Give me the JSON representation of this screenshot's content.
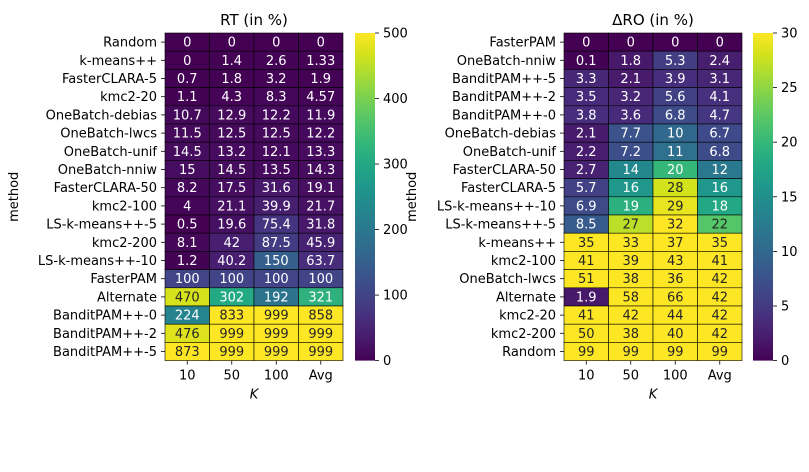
{
  "chart_data": [
    {
      "type": "heatmap",
      "title": "RT (in %)",
      "xlabel": "K",
      "ylabel": "method",
      "columns": [
        "10",
        "50",
        "100",
        "Avg"
      ],
      "rows": [
        "Random",
        "k-means++",
        "FasterCLARA-5",
        "kmc2-20",
        "OneBatch-debias",
        "OneBatch-lwcs",
        "OneBatch-unif",
        "OneBatch-nniw",
        "FasterCLARA-50",
        "kmc2-100",
        "LS-k-means++-5",
        "kmc2-200",
        "LS-k-means++-10",
        "FasterPAM",
        "Alternate",
        "BanditPAM++-0",
        "BanditPAM++-2",
        "BanditPAM++-5"
      ],
      "values": [
        [
          "0",
          "0",
          "0",
          "0"
        ],
        [
          "0",
          "1.4",
          "2.6",
          "1.33"
        ],
        [
          "0.7",
          "1.8",
          "3.2",
          "1.9"
        ],
        [
          "1.1",
          "4.3",
          "8.3",
          "4.57"
        ],
        [
          "10.7",
          "12.9",
          "12.2",
          "11.9"
        ],
        [
          "11.5",
          "12.5",
          "12.5",
          "12.2"
        ],
        [
          "14.5",
          "13.2",
          "12.1",
          "13.3"
        ],
        [
          "15",
          "14.5",
          "13.5",
          "14.3"
        ],
        [
          "8.2",
          "17.5",
          "31.6",
          "19.1"
        ],
        [
          "4",
          "21.1",
          "39.9",
          "21.7"
        ],
        [
          "0.5",
          "19.6",
          "75.4",
          "31.8"
        ],
        [
          "8.1",
          "42",
          "87.5",
          "45.9"
        ],
        [
          "1.2",
          "40.2",
          "150",
          "63.7"
        ],
        [
          "100",
          "100",
          "100",
          "100"
        ],
        [
          "470",
          "302",
          "192",
          "321"
        ],
        [
          "224",
          "833",
          "999",
          "858"
        ],
        [
          "476",
          "999",
          "999",
          "999"
        ],
        [
          "873",
          "999",
          "999",
          "999"
        ]
      ],
      "vmin": 0,
      "vmax": 500,
      "colorbar_ticks": [
        "0",
        "100",
        "200",
        "300",
        "400",
        "500"
      ]
    },
    {
      "type": "heatmap",
      "title": "ΔRO (in %)",
      "xlabel": "K",
      "ylabel": "method",
      "columns": [
        "10",
        "50",
        "100",
        "Avg"
      ],
      "rows": [
        "FasterPAM",
        "OneBatch-nniw",
        "BanditPAM++-5",
        "BanditPAM++-2",
        "BanditPAM++-0",
        "OneBatch-debias",
        "OneBatch-unif",
        "FasterCLARA-50",
        "FasterCLARA-5",
        "LS-k-means++-10",
        "LS-k-means++-5",
        "k-means++",
        "kmc2-100",
        "OneBatch-lwcs",
        "Alternate",
        "kmc2-20",
        "kmc2-200",
        "Random"
      ],
      "values": [
        [
          "0",
          "0",
          "0",
          "0"
        ],
        [
          "0.1",
          "1.8",
          "5.3",
          "2.4"
        ],
        [
          "3.3",
          "2.1",
          "3.9",
          "3.1"
        ],
        [
          "3.5",
          "3.2",
          "5.6",
          "4.1"
        ],
        [
          "3.8",
          "3.6",
          "6.8",
          "4.7"
        ],
        [
          "2.1",
          "7.7",
          "10",
          "6.7"
        ],
        [
          "2.2",
          "7.2",
          "11",
          "6.8"
        ],
        [
          "2.7",
          "14",
          "20",
          "12"
        ],
        [
          "5.7",
          "16",
          "28",
          "16"
        ],
        [
          "6.9",
          "19",
          "29",
          "18"
        ],
        [
          "8.5",
          "27",
          "32",
          "22"
        ],
        [
          "35",
          "33",
          "37",
          "35"
        ],
        [
          "41",
          "39",
          "43",
          "41"
        ],
        [
          "51",
          "38",
          "36",
          "42"
        ],
        [
          "1.9",
          "58",
          "66",
          "42"
        ],
        [
          "41",
          "42",
          "44",
          "42"
        ],
        [
          "50",
          "38",
          "40",
          "42"
        ],
        [
          "99",
          "99",
          "99",
          "99"
        ]
      ],
      "vmin": 0,
      "vmax": 30,
      "colorbar_ticks": [
        "0",
        "5",
        "10",
        "15",
        "20",
        "25",
        "30"
      ]
    }
  ]
}
